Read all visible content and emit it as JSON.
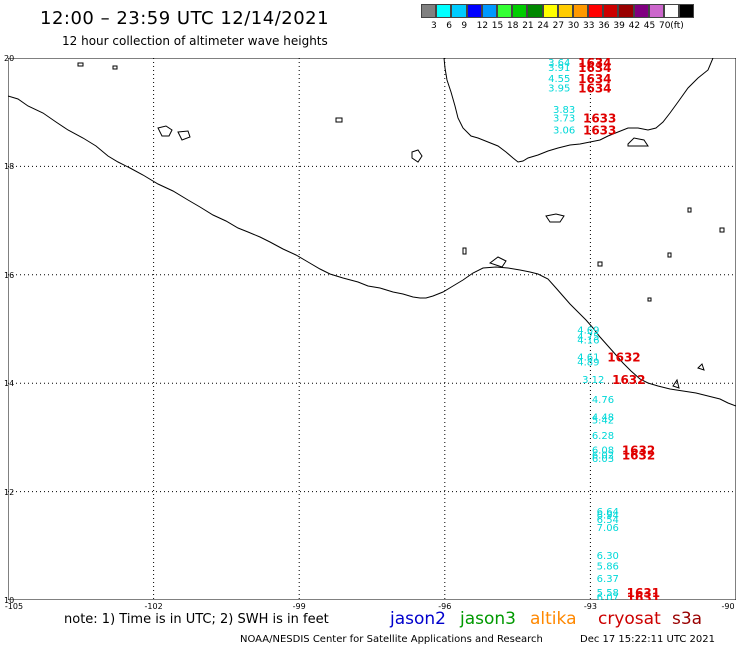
{
  "title": "12:00 – 23:59 UTC 12/14/2021",
  "subtitle": "12 hour collection of altimeter wave heights",
  "colorbar": {
    "colors": [
      "#808080",
      "#00ffff",
      "#00ccff",
      "#0000ff",
      "#0099ff",
      "#33ff33",
      "#00cc00",
      "#008800",
      "#ffff00",
      "#ffcc00",
      "#ff9900",
      "#ff0000",
      "#cc0000",
      "#990000",
      "#800080",
      "#cc66cc",
      "#ffffff",
      "#000000"
    ],
    "labels": [
      "3",
      "6",
      "9",
      "12",
      "15",
      "18",
      "21",
      "24",
      "27",
      "30",
      "33",
      "36",
      "39",
      "42",
      "45",
      "70"
    ],
    "unit": "(ft)"
  },
  "axes": {
    "y_labels": [
      "20",
      "18",
      "16",
      "14",
      "12",
      "10"
    ],
    "x_labels": [
      "-105",
      "-102",
      "-99",
      "-96",
      "-93",
      "-90"
    ]
  },
  "observations": [
    {
      "lat": 19.93,
      "lon": -93.5,
      "swh": "3.64",
      "time": "1634"
    },
    {
      "lat": 19.83,
      "lon": -93.5,
      "swh": "3.91",
      "time": "1634"
    },
    {
      "lat": 19.63,
      "lon": -93.5,
      "swh": "4.55",
      "time": "1634"
    },
    {
      "lat": 19.46,
      "lon": -93.5,
      "swh": "3.95",
      "time": "1634"
    },
    {
      "lat": 19.06,
      "lon": -93.4,
      "swh": "3.83",
      "time": ""
    },
    {
      "lat": 18.9,
      "lon": -93.4,
      "swh": "3.73",
      "time": "1633"
    },
    {
      "lat": 18.68,
      "lon": -93.4,
      "swh": "3.06",
      "time": "1633"
    },
    {
      "lat": 14.99,
      "lon": -92.9,
      "swh": "4.69",
      "time": ""
    },
    {
      "lat": 14.87,
      "lon": -92.9,
      "swh": "4.75",
      "time": ""
    },
    {
      "lat": 14.81,
      "lon": -92.9,
      "swh": "4.16",
      "time": ""
    },
    {
      "lat": 14.49,
      "lon": -92.9,
      "swh": "4.61",
      "time": "1632"
    },
    {
      "lat": 14.4,
      "lon": -92.9,
      "swh": "4.89",
      "time": ""
    },
    {
      "lat": 14.08,
      "lon": -92.8,
      "swh": "3.12",
      "time": "1632"
    },
    {
      "lat": 13.71,
      "lon": -92.6,
      "swh": "4.76",
      "time": ""
    },
    {
      "lat": 13.39,
      "lon": -92.6,
      "swh": "4.48",
      "time": ""
    },
    {
      "lat": 13.33,
      "lon": -92.6,
      "swh": "5.42",
      "time": ""
    },
    {
      "lat": 13.04,
      "lon": -92.6,
      "swh": "6.28",
      "time": ""
    },
    {
      "lat": 12.78,
      "lon": -92.6,
      "swh": "6.08",
      "time": "1632"
    },
    {
      "lat": 12.68,
      "lon": -92.6,
      "swh": "6.02",
      "time": "1632"
    },
    {
      "lat": 12.62,
      "lon": -92.6,
      "swh": "6.03",
      "time": ""
    },
    {
      "lat": 11.64,
      "lon": -92.5,
      "swh": "6.64",
      "time": ""
    },
    {
      "lat": 11.58,
      "lon": -92.5,
      "swh": "6.94",
      "time": ""
    },
    {
      "lat": 11.49,
      "lon": -92.5,
      "swh": "6.54",
      "time": ""
    },
    {
      "lat": 11.35,
      "lon": -92.5,
      "swh": "7.06",
      "time": ""
    },
    {
      "lat": 10.83,
      "lon": -92.5,
      "swh": "6.30",
      "time": ""
    },
    {
      "lat": 10.64,
      "lon": -92.5,
      "swh": "5.86",
      "time": ""
    },
    {
      "lat": 10.41,
      "lon": -92.5,
      "swh": "6.37",
      "time": ""
    },
    {
      "lat": 10.15,
      "lon": -92.5,
      "swh": "5.58",
      "time": "1631"
    },
    {
      "lat": 10.06,
      "lon": -92.5,
      "swh": "6.07",
      "time": "1631"
    }
  ],
  "obs_colors": {
    "swh": "#00d8d8",
    "time": "#e00000"
  },
  "note": "note:  1) Time is in UTC;  2) SWH is in feet",
  "legend": [
    {
      "label": "jason2",
      "color": "#0000cc"
    },
    {
      "label": "jason3",
      "color": "#009900"
    },
    {
      "label": "altika",
      "color": "#ff8800"
    },
    {
      "label": "cryosat",
      "color": "#cc0000"
    },
    {
      "label": "s3a",
      "color": "#990000"
    }
  ],
  "credit": "NOAA/NESDIS Center for Satellite Applications and Research",
  "timestamp": "Dec 17 15:22:11 UTC 2021"
}
